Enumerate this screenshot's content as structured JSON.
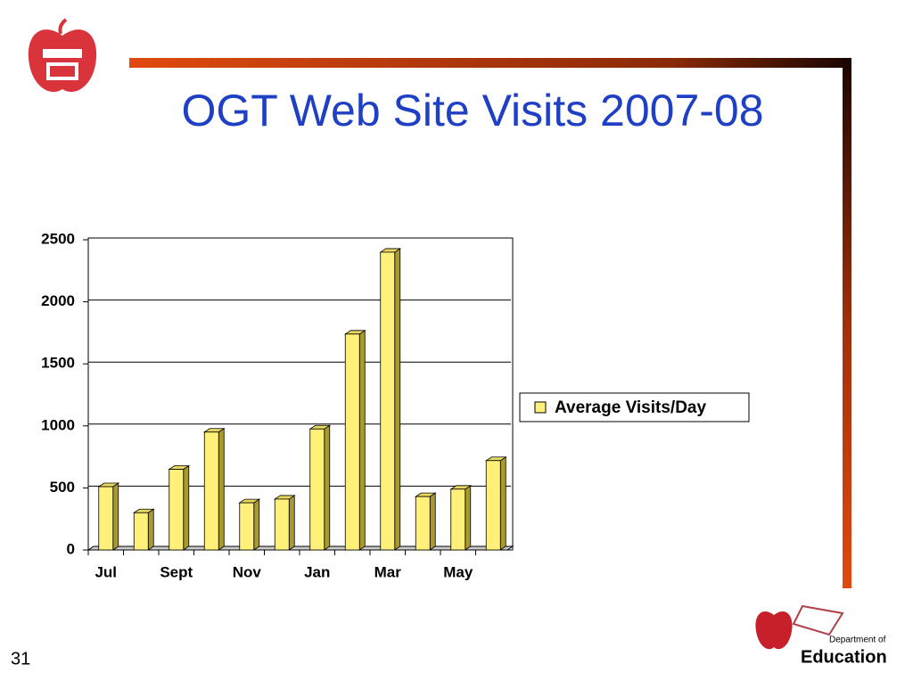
{
  "chart_data": {
    "type": "bar3d",
    "title": "OGT Web Site Visits 2007-08",
    "categories": [
      "Jul",
      null,
      "Sept",
      null,
      "Nov",
      null,
      "Jan",
      null,
      "Mar",
      null,
      "May",
      null
    ],
    "series": [
      {
        "name": "Average Visits/Day",
        "color": "#fff07a",
        "values": [
          510,
          300,
          650,
          950,
          380,
          410,
          975,
          1740,
          2400,
          430,
          490,
          720
        ]
      }
    ],
    "ylim": [
      0,
      2500
    ],
    "yticks": [
      0,
      500,
      1000,
      1500,
      2000,
      2500
    ],
    "grid": true,
    "legend": "right"
  },
  "slide_number": "31",
  "logo": {
    "line1": "Department of",
    "line2": "Education"
  }
}
